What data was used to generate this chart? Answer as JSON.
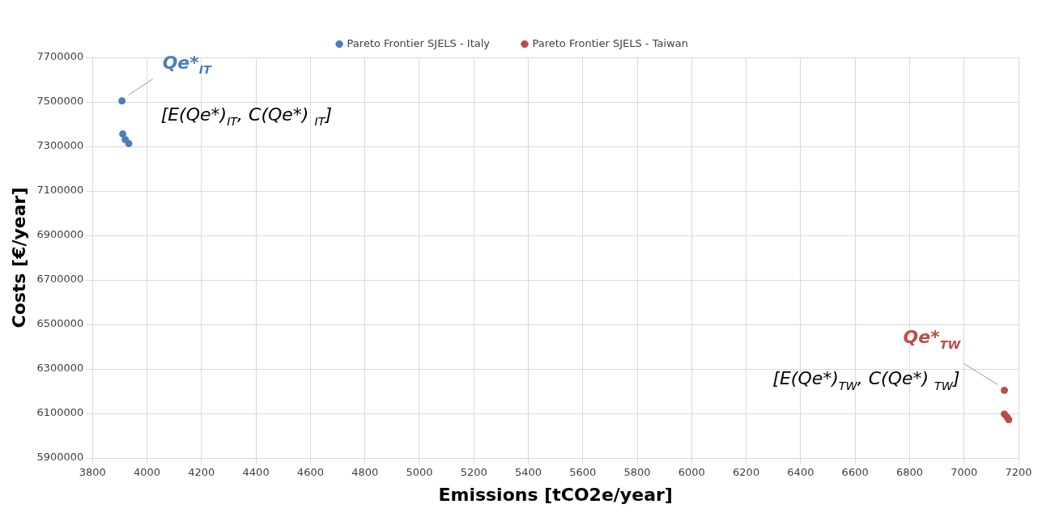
{
  "chart_data": {
    "type": "scatter",
    "xlabel": "Emissions [tCO2e/year]",
    "ylabel": "Costs [€/year]",
    "xlim": [
      3800,
      7200
    ],
    "xticks": [
      3800,
      4000,
      4200,
      4400,
      4600,
      4800,
      5000,
      5200,
      5400,
      5600,
      5800,
      6000,
      6200,
      6400,
      6600,
      6800,
      7000,
      7200
    ],
    "ylim": [
      5900000,
      7700000
    ],
    "yticks": [
      5900000,
      6100000,
      6300000,
      6500000,
      6700000,
      6900000,
      7100000,
      7300000,
      7500000,
      7700000
    ],
    "grid": true,
    "legend": "top",
    "marker": "circle",
    "series": [
      {
        "name": "Pareto Frontier SJELS - Italy",
        "color": "#4a7ebb",
        "x": [
          3908,
          3911,
          3920,
          3933
        ],
        "values": [
          7505000,
          7356000,
          7331000,
          7313000
        ]
      },
      {
        "name": "Pareto Frontier SJELS - Taiwan",
        "color": "#be4b48",
        "x": [
          7148,
          7148,
          7158,
          7164
        ],
        "values": [
          6204000,
          6097000,
          6083000,
          6072000
        ]
      }
    ],
    "annotations": [
      "Qe*$_{IT}$",
      "[E(Qe*)$_{IT}$, C(Qe*) $_{IT}$]",
      "Qe*$_{TW}$",
      "[E(Qe*)$_{TW}$, C(Qe*) $_{TW}$]"
    ]
  }
}
